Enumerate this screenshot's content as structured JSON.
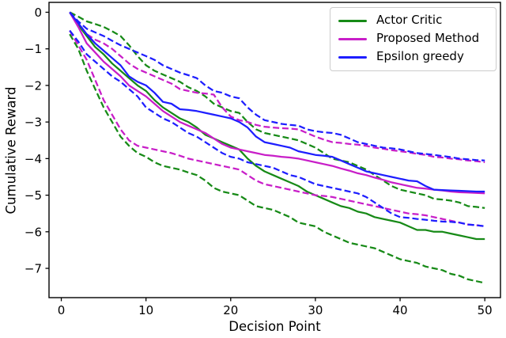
{
  "figure": {
    "xlabel": "Decision Point",
    "ylabel": "Cumulative Reward"
  },
  "chart_data": {
    "type": "line",
    "title": "",
    "xlabel": "Decision Point",
    "ylabel": "Cumulative Reward",
    "xlim": [
      -1.45,
      51.85
    ],
    "ylim": [
      -7.8,
      0.27
    ],
    "xticks": [
      0,
      10,
      20,
      30,
      40,
      50
    ],
    "yticks": [
      0,
      -1,
      -2,
      -3,
      -4,
      -5,
      -6,
      -7
    ],
    "grid": false,
    "legend_position": "upper right",
    "legend": [
      {
        "label": "Actor Critic",
        "color": "#178a17",
        "style": "solid"
      },
      {
        "label": "Proposed Method",
        "color": "#c81ec8",
        "style": "solid"
      },
      {
        "label": "Epsilon greedy",
        "color": "#1e1eff",
        "style": "solid"
      }
    ],
    "x": [
      1,
      2,
      3,
      4,
      5,
      6,
      7,
      8,
      9,
      10,
      11,
      12,
      13,
      14,
      15,
      16,
      17,
      18,
      19,
      20,
      21,
      22,
      23,
      24,
      25,
      26,
      27,
      28,
      29,
      30,
      31,
      32,
      33,
      34,
      35,
      36,
      37,
      38,
      39,
      40,
      41,
      42,
      43,
      44,
      45,
      46,
      47,
      48,
      49,
      50
    ],
    "series": [
      {
        "name": "actor-critic-mean",
        "group": "Actor Critic",
        "color": "#178a17",
        "dash": false,
        "values": [
          0,
          -0.35,
          -0.65,
          -0.95,
          -1.15,
          -1.4,
          -1.6,
          -1.8,
          -2.0,
          -2.15,
          -2.4,
          -2.6,
          -2.75,
          -2.9,
          -3.0,
          -3.15,
          -3.35,
          -3.45,
          -3.55,
          -3.65,
          -3.75,
          -4.0,
          -4.2,
          -4.35,
          -4.45,
          -4.55,
          -4.65,
          -4.75,
          -4.9,
          -5.0,
          -5.1,
          -5.2,
          -5.3,
          -5.35,
          -5.45,
          -5.5,
          -5.6,
          -5.65,
          -5.7,
          -5.75,
          -5.85,
          -5.95,
          -5.95,
          -6.0,
          -6.0,
          -6.05,
          -6.1,
          -6.15,
          -6.2,
          -6.2
        ]
      },
      {
        "name": "actor-critic-upper-ci",
        "group": "Actor Critic",
        "color": "#178a17",
        "dash": true,
        "values": [
          0,
          -0.12,
          -0.25,
          -0.32,
          -0.4,
          -0.52,
          -0.65,
          -0.9,
          -1.2,
          -1.45,
          -1.6,
          -1.7,
          -1.8,
          -1.9,
          -2.05,
          -2.15,
          -2.3,
          -2.5,
          -2.6,
          -2.7,
          -2.75,
          -3.0,
          -3.2,
          -3.3,
          -3.35,
          -3.4,
          -3.45,
          -3.5,
          -3.6,
          -3.7,
          -3.85,
          -4.0,
          -4.05,
          -4.1,
          -4.2,
          -4.3,
          -4.45,
          -4.6,
          -4.75,
          -4.85,
          -4.9,
          -4.95,
          -5.0,
          -5.1,
          -5.12,
          -5.15,
          -5.2,
          -5.3,
          -5.32,
          -5.35
        ]
      },
      {
        "name": "actor-critic-lower-ci",
        "group": "Actor Critic",
        "color": "#178a17",
        "dash": true,
        "values": [
          -0.6,
          -1.0,
          -1.6,
          -2.1,
          -2.6,
          -3.0,
          -3.4,
          -3.65,
          -3.85,
          -3.95,
          -4.1,
          -4.2,
          -4.25,
          -4.3,
          -4.38,
          -4.45,
          -4.6,
          -4.8,
          -4.9,
          -4.95,
          -5.0,
          -5.15,
          -5.3,
          -5.35,
          -5.4,
          -5.5,
          -5.6,
          -5.75,
          -5.8,
          -5.85,
          -6.0,
          -6.1,
          -6.2,
          -6.3,
          -6.35,
          -6.4,
          -6.45,
          -6.55,
          -6.65,
          -6.75,
          -6.8,
          -6.85,
          -6.95,
          -7.0,
          -7.05,
          -7.15,
          -7.2,
          -7.3,
          -7.35,
          -7.4
        ]
      },
      {
        "name": "proposed-method-mean",
        "group": "Proposed Method",
        "color": "#c81ec8",
        "dash": false,
        "values": [
          0,
          -0.4,
          -0.85,
          -1.1,
          -1.35,
          -1.55,
          -1.75,
          -2.0,
          -2.15,
          -2.3,
          -2.5,
          -2.7,
          -2.85,
          -3.0,
          -3.1,
          -3.2,
          -3.3,
          -3.45,
          -3.6,
          -3.7,
          -3.75,
          -3.8,
          -3.85,
          -3.9,
          -3.92,
          -3.95,
          -3.97,
          -4.0,
          -4.05,
          -4.1,
          -4.15,
          -4.2,
          -4.27,
          -4.33,
          -4.4,
          -4.45,
          -4.52,
          -4.58,
          -4.65,
          -4.7,
          -4.75,
          -4.8,
          -4.82,
          -4.85,
          -4.87,
          -4.9,
          -4.92,
          -4.93,
          -4.94,
          -4.95
        ]
      },
      {
        "name": "proposed-method-upper-ci",
        "group": "Proposed Method",
        "color": "#c81ec8",
        "dash": true,
        "values": [
          0,
          -0.3,
          -0.6,
          -0.75,
          -0.85,
          -1.0,
          -1.2,
          -1.4,
          -1.55,
          -1.65,
          -1.75,
          -1.85,
          -1.95,
          -2.1,
          -2.15,
          -2.2,
          -2.22,
          -2.25,
          -2.6,
          -2.85,
          -2.95,
          -3.0,
          -3.08,
          -3.13,
          -3.15,
          -3.17,
          -3.18,
          -3.2,
          -3.3,
          -3.4,
          -3.48,
          -3.55,
          -3.57,
          -3.6,
          -3.62,
          -3.65,
          -3.7,
          -3.73,
          -3.77,
          -3.8,
          -3.83,
          -3.87,
          -3.9,
          -3.95,
          -3.97,
          -4.0,
          -4.02,
          -4.05,
          -4.07,
          -4.1
        ]
      },
      {
        "name": "proposed-method-lower-ci",
        "group": "Proposed Method",
        "color": "#c81ec8",
        "dash": true,
        "values": [
          -0.5,
          -0.9,
          -1.3,
          -1.85,
          -2.4,
          -2.8,
          -3.2,
          -3.5,
          -3.65,
          -3.7,
          -3.75,
          -3.8,
          -3.85,
          -3.92,
          -4.0,
          -4.05,
          -4.1,
          -4.15,
          -4.2,
          -4.25,
          -4.3,
          -4.45,
          -4.6,
          -4.7,
          -4.75,
          -4.8,
          -4.85,
          -4.9,
          -4.95,
          -5.0,
          -5.02,
          -5.05,
          -5.1,
          -5.15,
          -5.2,
          -5.25,
          -5.3,
          -5.35,
          -5.4,
          -5.45,
          -5.5,
          -5.52,
          -5.55,
          -5.6,
          -5.65,
          -5.7,
          -5.75,
          -5.8,
          -5.82,
          -5.85
        ]
      },
      {
        "name": "epsilon-greedy-mean",
        "group": "Epsilon greedy",
        "color": "#1e1eff",
        "dash": false,
        "values": [
          0,
          -0.3,
          -0.6,
          -0.85,
          -1.05,
          -1.25,
          -1.45,
          -1.75,
          -1.9,
          -2.0,
          -2.2,
          -2.45,
          -2.5,
          -2.65,
          -2.67,
          -2.7,
          -2.75,
          -2.8,
          -2.85,
          -2.9,
          -3.0,
          -3.15,
          -3.4,
          -3.55,
          -3.6,
          -3.65,
          -3.7,
          -3.8,
          -3.85,
          -3.9,
          -3.92,
          -3.95,
          -4.05,
          -4.15,
          -4.25,
          -4.35,
          -4.4,
          -4.45,
          -4.5,
          -4.55,
          -4.6,
          -4.62,
          -4.75,
          -4.85,
          -4.86,
          -4.87,
          -4.88,
          -4.89,
          -4.9,
          -4.9
        ]
      },
      {
        "name": "epsilon-greedy-upper-ci",
        "group": "Epsilon greedy",
        "color": "#1e1eff",
        "dash": true,
        "values": [
          0,
          -0.25,
          -0.45,
          -0.55,
          -0.65,
          -0.78,
          -0.9,
          -1.0,
          -1.1,
          -1.2,
          -1.3,
          -1.45,
          -1.55,
          -1.65,
          -1.72,
          -1.8,
          -2.0,
          -2.15,
          -2.2,
          -2.3,
          -2.35,
          -2.6,
          -2.8,
          -2.95,
          -3.0,
          -3.05,
          -3.08,
          -3.1,
          -3.2,
          -3.25,
          -3.28,
          -3.3,
          -3.35,
          -3.45,
          -3.55,
          -3.6,
          -3.65,
          -3.7,
          -3.72,
          -3.75,
          -3.8,
          -3.85,
          -3.87,
          -3.9,
          -3.93,
          -3.96,
          -4.0,
          -4.02,
          -4.04,
          -4.05
        ]
      },
      {
        "name": "epsilon-greedy-lower-ci",
        "group": "Epsilon greedy",
        "color": "#1e1eff",
        "dash": true,
        "values": [
          -0.5,
          -0.8,
          -1.15,
          -1.35,
          -1.55,
          -1.75,
          -1.9,
          -2.1,
          -2.3,
          -2.6,
          -2.75,
          -2.9,
          -3.0,
          -3.15,
          -3.3,
          -3.4,
          -3.55,
          -3.7,
          -3.85,
          -3.95,
          -4.0,
          -4.1,
          -4.15,
          -4.2,
          -4.25,
          -4.35,
          -4.45,
          -4.5,
          -4.6,
          -4.7,
          -4.75,
          -4.8,
          -4.85,
          -4.9,
          -4.95,
          -5.05,
          -5.2,
          -5.35,
          -5.5,
          -5.6,
          -5.62,
          -5.65,
          -5.67,
          -5.7,
          -5.72,
          -5.73,
          -5.75,
          -5.8,
          -5.82,
          -5.85
        ]
      }
    ]
  }
}
